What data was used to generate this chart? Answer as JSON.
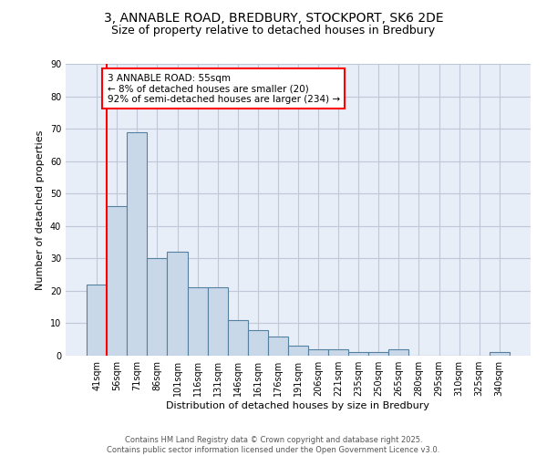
{
  "title_line1": "3, ANNABLE ROAD, BREDBURY, STOCKPORT, SK6 2DE",
  "title_line2": "Size of property relative to detached houses in Bredbury",
  "xlabel": "Distribution of detached houses by size in Bredbury",
  "ylabel": "Number of detached properties",
  "categories": [
    "41sqm",
    "56sqm",
    "71sqm",
    "86sqm",
    "101sqm",
    "116sqm",
    "131sqm",
    "146sqm",
    "161sqm",
    "176sqm",
    "191sqm",
    "206sqm",
    "221sqm",
    "235sqm",
    "250sqm",
    "265sqm",
    "280sqm",
    "295sqm",
    "310sqm",
    "325sqm",
    "340sqm"
  ],
  "values": [
    22,
    46,
    69,
    30,
    32,
    21,
    21,
    11,
    8,
    6,
    3,
    2,
    2,
    1,
    1,
    2,
    0,
    0,
    0,
    0,
    1
  ],
  "bar_color": "#c8d8e8",
  "bar_edge_color": "#5580a0",
  "annotation_text": "3 ANNABLE ROAD: 55sqm\n← 8% of detached houses are smaller (20)\n92% of semi-detached houses are larger (234) →",
  "annotation_box_color": "white",
  "annotation_box_edge_color": "red",
  "annotation_fontsize": 7.5,
  "ylim": [
    0,
    90
  ],
  "yticks": [
    0,
    10,
    20,
    30,
    40,
    50,
    60,
    70,
    80,
    90
  ],
  "grid_color": "#c0c8d8",
  "background_color": "#e8eef8",
  "footer_line1": "Contains HM Land Registry data © Crown copyright and database right 2025.",
  "footer_line2": "Contains public sector information licensed under the Open Government Licence v3.0.",
  "title_fontsize": 10,
  "subtitle_fontsize": 9,
  "tick_fontsize": 7,
  "label_fontsize": 8
}
